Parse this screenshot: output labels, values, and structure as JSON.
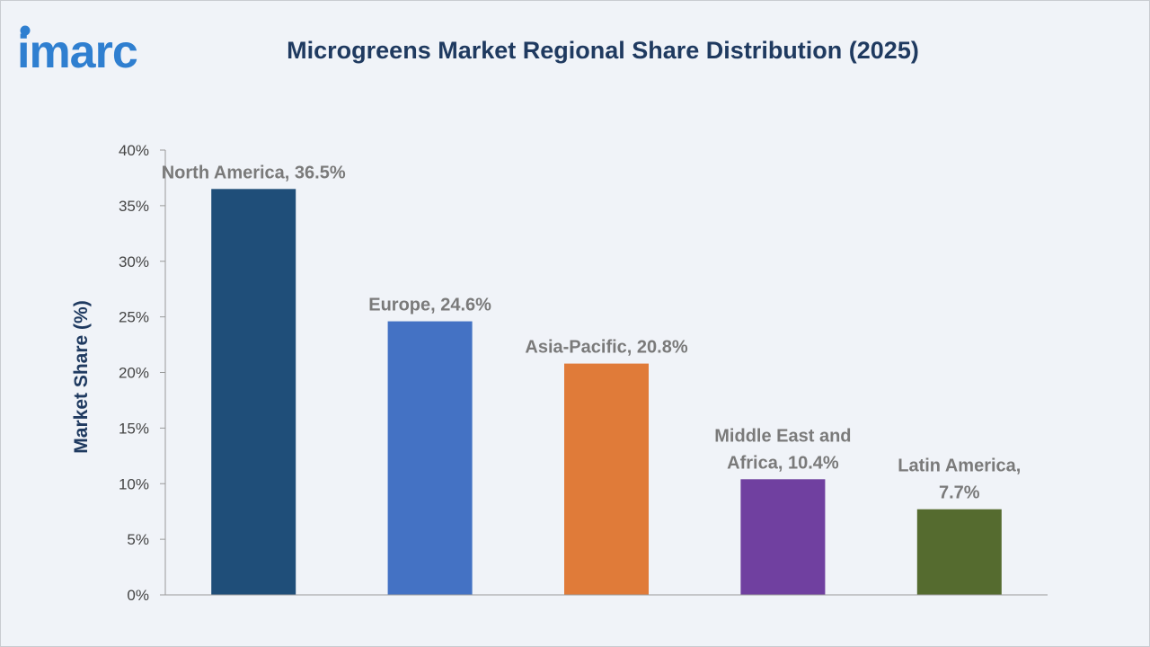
{
  "header": {
    "logo_text": "imarc",
    "title": "Microgreens Market Regional Share Distribution (2025)"
  },
  "colors": {
    "background": "#f0f3f8",
    "title": "#1f3a60",
    "logo": "#2f7fd0",
    "axis": "#9a9a9a"
  },
  "chart_data": {
    "type": "bar",
    "title": "Microgreens Market Regional Share Distribution (2025)",
    "xlabel": "",
    "ylabel": "Market Share (%)",
    "ylim": [
      0,
      40
    ],
    "y_ticks": [
      "0%",
      "5%",
      "10%",
      "15%",
      "20%",
      "25%",
      "30%",
      "35%",
      "40%"
    ],
    "grid": false,
    "categories": [
      "North America",
      "Europe",
      "Asia-Pacific",
      "Middle East and Africa",
      "Latin America"
    ],
    "values": [
      36.5,
      24.6,
      20.8,
      10.4,
      7.7
    ],
    "bar_colors": [
      "#1f4e79",
      "#4472c4",
      "#e07b39",
      "#7040a0",
      "#556b2f"
    ],
    "data_labels": [
      [
        "North America, 36.5%"
      ],
      [
        "Europe, 24.6%"
      ],
      [
        "Asia-Pacific, 20.8%"
      ],
      [
        "Middle East and",
        "Africa, 10.4%"
      ],
      [
        "Latin America,",
        "7.7%"
      ]
    ]
  }
}
